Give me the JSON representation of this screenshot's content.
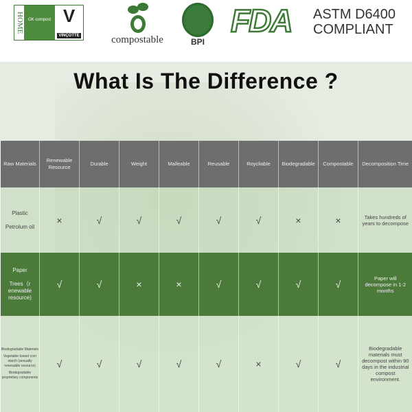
{
  "logos": {
    "home": {
      "side_text": "HOME",
      "badge": "OK compost",
      "mark": "V",
      "code": "S063",
      "brand": "VINÇOTTE"
    },
    "compostable": "compostable",
    "bpi": "BPI",
    "fda": "FDA",
    "astm": [
      "ASTM D6400",
      "COMPLIANT"
    ]
  },
  "title": "What Is The Difference ?",
  "colors": {
    "header": "#6e6e6e",
    "paper_row": "#4c7a3a",
    "light_row": "#c3dcb9",
    "brand_green": "#3c7a35"
  },
  "table": {
    "headers": [
      "Raw Materials",
      "Renewable Resource",
      "Durable",
      "Weight",
      "Malleable",
      "Reusable",
      "Roycliable",
      "Biodegradable",
      "Compostable",
      "Decomposition Time"
    ],
    "rows": [
      {
        "material": [
          "Plastic",
          "Petrolum oil"
        ],
        "marks": [
          "×",
          "√",
          "√",
          "√",
          "√",
          "√",
          "×",
          "×"
        ],
        "time": "Takes hundreds of years to decompose"
      },
      {
        "material": [
          "Paper",
          "Trees（r enewable resource)"
        ],
        "marks": [
          "√",
          "√",
          "×",
          "×",
          "√",
          "√",
          "√",
          "√"
        ],
        "time": "Paper will decompose in 1-2 months"
      },
      {
        "material": [
          "Biodegradable Materials",
          "Vegetable based corn starch (annually renewable resource)",
          "Biodegradable proprietary components"
        ],
        "marks": [
          "√",
          "√",
          "√",
          "√",
          "√",
          "×",
          "√",
          "√"
        ],
        "time": "Biodegradable materials must decompost within 90 days in the industrial compost environment."
      }
    ]
  }
}
